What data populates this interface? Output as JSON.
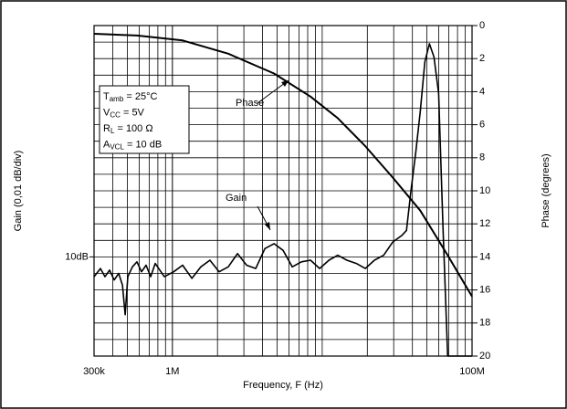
{
  "chart_data": {
    "type": "line",
    "xlabel": "Frequency, F (Hz)",
    "ylabel": "Gain (0,01 dB/div)",
    "y2label": "Phase (degrees)",
    "xscale": "log",
    "xlim": [
      300000,
      100000000
    ],
    "xticks": [
      {
        "value": 300000,
        "label": "300k"
      },
      {
        "value": 1000000,
        "label": "1M"
      },
      {
        "value": 100000000,
        "label": "100M"
      }
    ],
    "ylim": [
      9.94,
      10.14
    ],
    "yticks": [
      {
        "value": 10,
        "label": "10dB"
      }
    ],
    "y2lim": [
      0,
      20
    ],
    "y2_inverted": true,
    "y2ticks": [
      0,
      2,
      4,
      6,
      8,
      10,
      12,
      14,
      16,
      18,
      20
    ],
    "grid": true,
    "annotation": [
      [
        "T",
        "amb",
        " = 25°C"
      ],
      [
        "V",
        "CC",
        " = 5V"
      ],
      [
        "R",
        "L",
        " = 100 Ω"
      ],
      [
        "A",
        "VCL",
        " = 10 dB"
      ]
    ],
    "series": [
      {
        "name": "Gain",
        "color": "#000000",
        "x": [
          300000,
          331000,
          355000,
          381000,
          409000,
          438000,
          464000,
          484000,
          504000,
          541000,
          580000,
          622000,
          668000,
          716000,
          768000,
          884000,
          1020000,
          1170000,
          1350000,
          1550000,
          1780000,
          2050000,
          2360000,
          2720000,
          3130000,
          3600000,
          4140000,
          4770000,
          5480000,
          6310000,
          7260000,
          8350000,
          9610000,
          11100000,
          12700000,
          14600000,
          16900000,
          19400000,
          22300000,
          25700000,
          29600000,
          34000000,
          36500000,
          39200000,
          42100000,
          45100000,
          48400000,
          51900000,
          55700000,
          59800000,
          64100000,
          68800000,
          73800000,
          91200000,
          100000000
        ],
        "values": [
          9.988,
          9.993,
          9.988,
          9.992,
          9.986,
          9.99,
          9.983,
          9.965,
          9.988,
          9.994,
          9.997,
          9.991,
          9.995,
          9.988,
          9.996,
          9.988,
          9.991,
          9.995,
          9.987,
          9.994,
          9.998,
          9.991,
          9.994,
          10.002,
          9.995,
          9.993,
          10.005,
          10.008,
          10.004,
          9.994,
          9.997,
          9.998,
          9.993,
          9.998,
          10.001,
          9.998,
          9.996,
          9.993,
          9.998,
          10.001,
          10.009,
          10.013,
          10.016,
          10.041,
          10.063,
          10.088,
          10.118,
          10.129,
          10.121,
          10.099,
          10.016,
          9.94,
          9.94,
          9.94,
          9.94
        ]
      },
      {
        "name": "Phase",
        "color": "#000000",
        "axis": "y2",
        "x": [
          300000,
          580000,
          1170000,
          2360000,
          4770000,
          8350000,
          12700000,
          19400000,
          29600000,
          45100000,
          68800000,
          100000000
        ],
        "values": [
          0.5,
          0.6,
          0.9,
          1.7,
          2.9,
          4.3,
          5.6,
          7.3,
          9.2,
          11.2,
          13.9,
          16.4
        ]
      }
    ]
  }
}
